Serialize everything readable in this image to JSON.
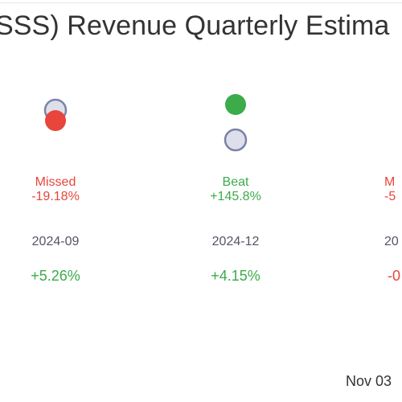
{
  "header": {
    "title": "SSS) Revenue Quarterly Estima"
  },
  "colors": {
    "beat": "#3cab4a",
    "missed": "#e8453c",
    "estimate_fill": "#dde0ea",
    "estimate_stroke": "#7d82a8",
    "text": "#333333",
    "muted": "#555566"
  },
  "chart_data": {
    "type": "scatter",
    "title": "SSS) Revenue Quarterly Estima",
    "y_scale": "relative",
    "quarters": [
      {
        "period": "2024-09",
        "status": "Missed",
        "surprise": "-19.18%",
        "surprise_value": -19.18,
        "growth": "+5.26%",
        "growth_value": 5.26,
        "actual_position": "below-estimate"
      },
      {
        "period": "2024-12",
        "status": "Beat",
        "surprise": "+145.8%",
        "surprise_value": 145.8,
        "growth": "+4.15%",
        "growth_value": 4.15,
        "actual_position": "above-estimate"
      },
      {
        "period": "20",
        "status": "M",
        "surprise": "-5",
        "growth": "-0",
        "partial": true
      }
    ],
    "legend": "none",
    "grid": false
  },
  "footer": {
    "date_text": "Nov 03"
  }
}
